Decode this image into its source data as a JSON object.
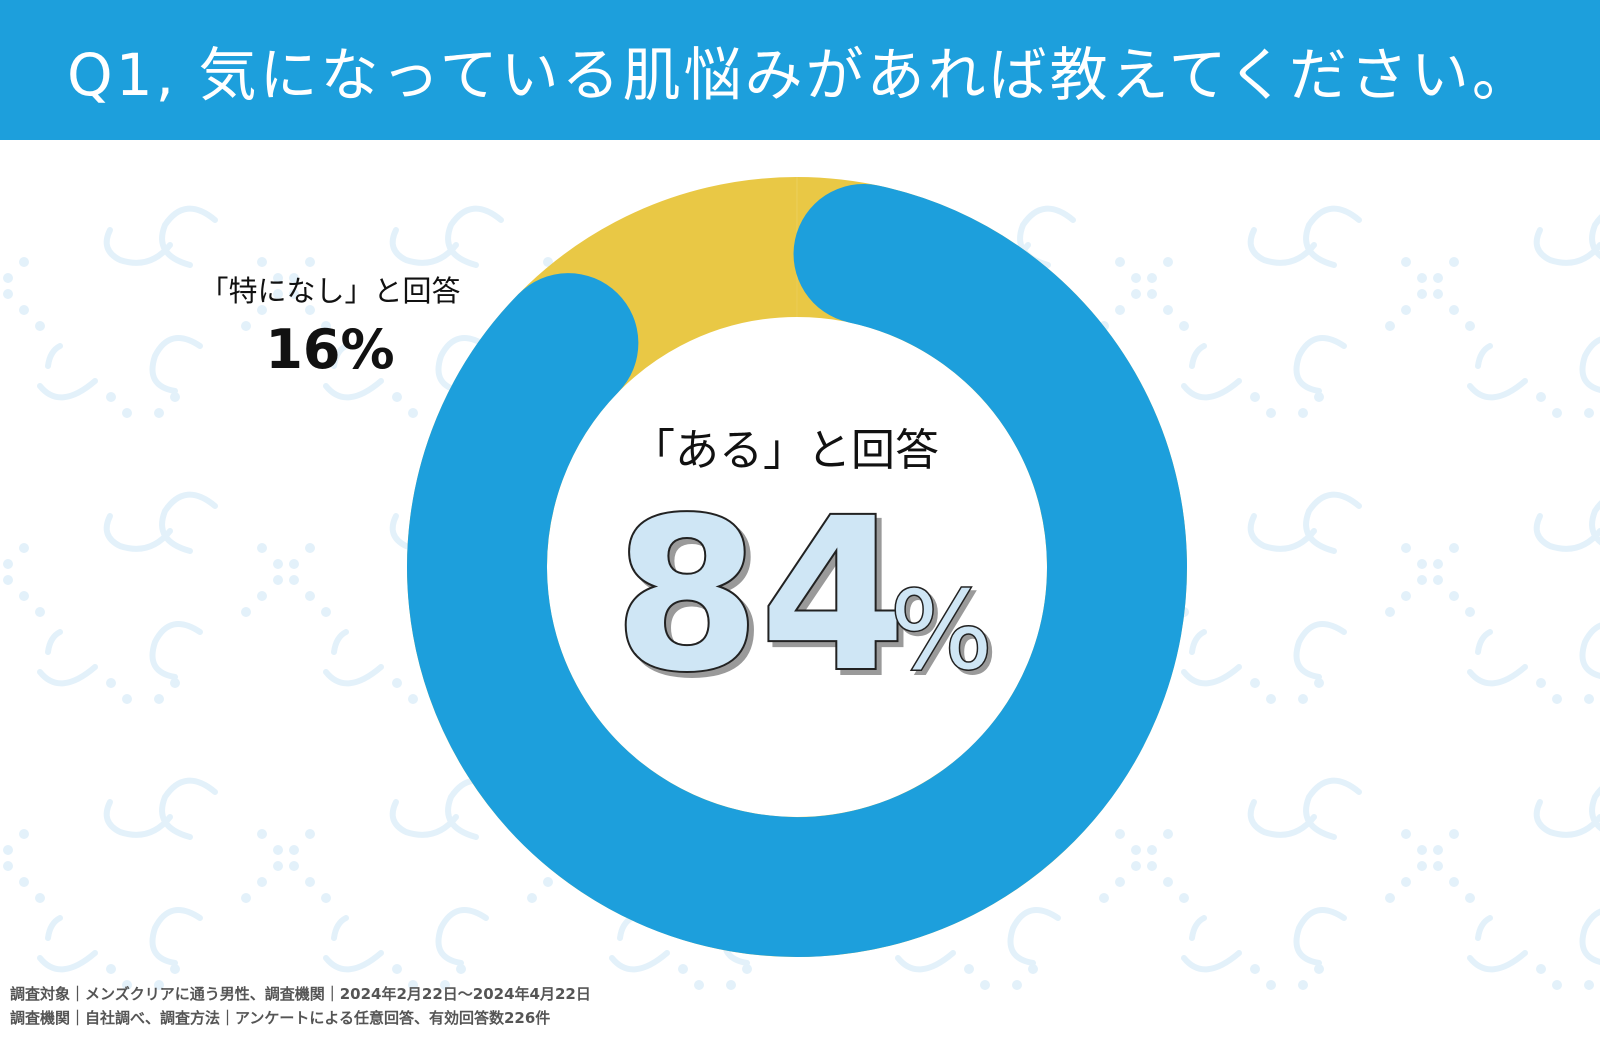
{
  "header": {
    "title": "Q1, 気になっている肌悩みがあれば教えてください。"
  },
  "chart_data": {
    "type": "pie",
    "donut": true,
    "categories": [
      "「ある」と回答",
      "「特になし」と回答"
    ],
    "values": [
      84,
      16
    ],
    "colors": [
      "#1d9fdc",
      "#e9c845"
    ],
    "labels": [
      {
        "caption": "「ある」と回答",
        "value": "84",
        "unit": "%"
      },
      {
        "caption": "「特になし」と回答",
        "value": "16%"
      }
    ]
  },
  "footer": {
    "line1": "調査対象｜メンズクリアに通う男性、調査機関｜2024年2月22日〜2024年4月22日",
    "line2": "調査機関｜自社調べ、調査方法｜アンケートによる任意回答、有効回答数226件"
  },
  "colors": {
    "header_bg": "#1d9fdc",
    "pattern": "#e3f1fa",
    "big_number_fill": "#cfe6f5"
  }
}
